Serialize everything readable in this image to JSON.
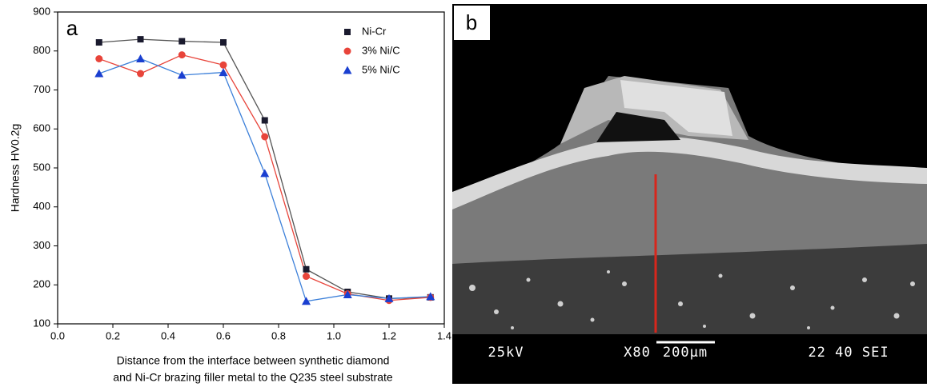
{
  "chart_data": {
    "type": "line",
    "panel_label": "a",
    "xlabel": [
      "Distance from the interface between synthetic diamond",
      "and Ni-Cr brazing filler metal to the Q235 steel substrate"
    ],
    "ylabel": "Hardness HV0.2g",
    "x": [
      0.15,
      0.3,
      0.45,
      0.6,
      0.75,
      0.9,
      1.05,
      1.2,
      1.35
    ],
    "series": [
      {
        "name": "Ni-Cr",
        "color": "#1a1a2e",
        "line_color": "#555555",
        "marker": "square",
        "values": [
          822,
          830,
          825,
          822,
          622,
          240,
          182,
          165,
          168
        ]
      },
      {
        "name": "3% Ni/C",
        "color": "#e8443a",
        "line_color": "#e8443a",
        "marker": "circle",
        "values": [
          780,
          742,
          790,
          764,
          580,
          222,
          177,
          160,
          168
        ]
      },
      {
        "name": "5% Ni/C",
        "color": "#1a3fd0",
        "line_color": "#3b7fd9",
        "marker": "triangle",
        "values": [
          742,
          780,
          738,
          745,
          486,
          158,
          175,
          165,
          170
        ]
      }
    ],
    "xlim": [
      0,
      1.4
    ],
    "xticks": [
      {
        "value": 0,
        "label": "0.0"
      },
      0.2,
      0.4,
      0.6,
      0.8,
      {
        "value": 1,
        "label": "1.0"
      },
      1.2,
      1.4
    ],
    "ylim": [
      100,
      900
    ],
    "yticks": [
      100,
      200,
      300,
      400,
      500,
      600,
      700,
      800,
      900
    ],
    "legend": "upper right"
  },
  "panel_b": {
    "label": "b",
    "info_bar": [
      "25kV",
      "X80",
      "200μm",
      "22 40 SEI"
    ]
  }
}
